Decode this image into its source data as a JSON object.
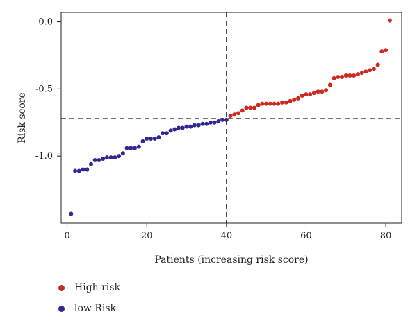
{
  "chart_data": {
    "type": "scatter",
    "xlabel": "Patients (increasing risk score)",
    "ylabel": "Risk score",
    "xlim": [
      -1.5,
      84
    ],
    "ylim": [
      -1.5,
      0.07
    ],
    "xticks": [
      0,
      20,
      40,
      60,
      80
    ],
    "yticks": [
      0.0,
      -0.5,
      -1.0
    ],
    "xtick_labels": [
      "0",
      "20",
      "40",
      "60",
      "80"
    ],
    "ytick_labels": [
      "0.0",
      "-0.5",
      "-1.0"
    ],
    "cutoff_x": 40,
    "cutoff_y": -0.72,
    "legend_position": "bottom-left",
    "series": [
      {
        "name": "low Risk",
        "color": "#2e2a8f",
        "x": [
          1,
          2,
          3,
          4,
          5,
          6,
          7,
          8,
          9,
          10,
          11,
          12,
          13,
          14,
          15,
          16,
          17,
          18,
          19,
          20,
          21,
          22,
          23,
          24,
          25,
          26,
          27,
          28,
          29,
          30,
          31,
          32,
          33,
          34,
          35,
          36,
          37,
          38,
          39,
          40
        ],
        "y": [
          -1.43,
          -1.11,
          -1.11,
          -1.1,
          -1.1,
          -1.06,
          -1.03,
          -1.03,
          -1.02,
          -1.01,
          -1.01,
          -1.01,
          -1.0,
          -0.98,
          -0.94,
          -0.94,
          -0.94,
          -0.93,
          -0.89,
          -0.87,
          -0.87,
          -0.87,
          -0.86,
          -0.83,
          -0.83,
          -0.81,
          -0.8,
          -0.79,
          -0.79,
          -0.78,
          -0.78,
          -0.77,
          -0.77,
          -0.76,
          -0.76,
          -0.75,
          -0.75,
          -0.74,
          -0.73,
          -0.73
        ]
      },
      {
        "name": "High risk",
        "color": "#cc2a1f",
        "x": [
          41,
          42,
          43,
          44,
          45,
          46,
          47,
          48,
          49,
          50,
          51,
          52,
          53,
          54,
          55,
          56,
          57,
          58,
          59,
          60,
          61,
          62,
          63,
          64,
          65,
          66,
          67,
          68,
          69,
          70,
          71,
          72,
          73,
          74,
          75,
          76,
          77,
          78,
          79,
          80,
          81
        ],
        "y": [
          -0.7,
          -0.69,
          -0.68,
          -0.66,
          -0.64,
          -0.64,
          -0.64,
          -0.62,
          -0.61,
          -0.61,
          -0.61,
          -0.61,
          -0.61,
          -0.6,
          -0.6,
          -0.59,
          -0.58,
          -0.57,
          -0.55,
          -0.54,
          -0.54,
          -0.53,
          -0.52,
          -0.52,
          -0.51,
          -0.47,
          -0.42,
          -0.41,
          -0.41,
          -0.4,
          -0.4,
          -0.4,
          -0.39,
          -0.38,
          -0.37,
          -0.36,
          -0.35,
          -0.32,
          -0.22,
          -0.21,
          0.01
        ]
      }
    ]
  },
  "legend": {
    "high_label": "High risk",
    "low_label": "low Risk",
    "high_color": "#cc2a1f",
    "low_color": "#2e2a8f"
  }
}
